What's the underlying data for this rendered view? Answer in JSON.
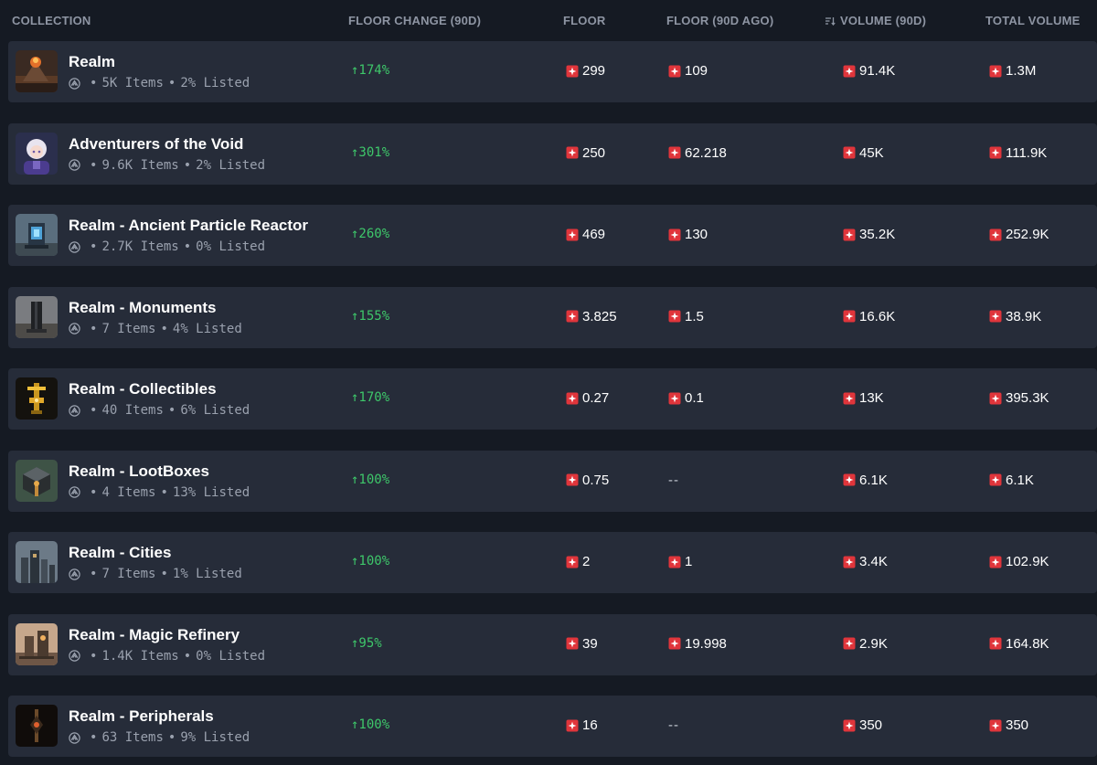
{
  "header": {
    "collection": "COLLECTION",
    "floor_change": "FLOOR CHANGE (90D)",
    "floor": "FLOOR",
    "floor_90d_ago": "FLOOR (90D AGO)",
    "volume": "VOLUME (90D)",
    "total_volume": "TOTAL VOLUME"
  },
  "colors": {
    "background": "#151a23",
    "row": "#262c39",
    "positive": "#3ec76a",
    "token": "#e0353b"
  },
  "rows": [
    {
      "name": "Realm",
      "items": "5K Items",
      "listed": "2% Listed",
      "change": "↑174%",
      "floor": "299",
      "floor_90d": "109",
      "volume": "91.4K",
      "total": "1.3M",
      "thumb": "volcano"
    },
    {
      "name": "Adventurers of the Void",
      "items": "9.6K Items",
      "listed": "2% Listed",
      "change": "↑301%",
      "floor": "250",
      "floor_90d": "62.218",
      "volume": "45K",
      "total": "111.9K",
      "thumb": "anime-character"
    },
    {
      "name": "Realm - Ancient Particle Reactor",
      "items": "2.7K Items",
      "listed": "0% Listed",
      "change": "↑260%",
      "floor": "469",
      "floor_90d": "130",
      "volume": "35.2K",
      "total": "252.9K",
      "thumb": "reactor"
    },
    {
      "name": "Realm - Monuments",
      "items": "7 Items",
      "listed": "4% Listed",
      "change": "↑155%",
      "floor": "3.825",
      "floor_90d": "1.5",
      "volume": "16.6K",
      "total": "38.9K",
      "thumb": "monument"
    },
    {
      "name": "Realm - Collectibles",
      "items": "40 Items",
      "listed": "6% Listed",
      "change": "↑170%",
      "floor": "0.27",
      "floor_90d": "0.1",
      "volume": "13K",
      "total": "395.3K",
      "thumb": "golden-totem"
    },
    {
      "name": "Realm - LootBoxes",
      "items": "4 Items",
      "listed": "13% Listed",
      "change": "↑100%",
      "floor": "0.75",
      "floor_90d": "--",
      "volume": "6.1K",
      "total": "6.1K",
      "thumb": "loot-box"
    },
    {
      "name": "Realm - Cities",
      "items": "7 Items",
      "listed": "1% Listed",
      "change": "↑100%",
      "floor": "2",
      "floor_90d": "1",
      "volume": "3.4K",
      "total": "102.9K",
      "thumb": "city"
    },
    {
      "name": "Realm - Magic Refinery",
      "items": "1.4K Items",
      "listed": "0% Listed",
      "change": "↑95%",
      "floor": "39",
      "floor_90d": "19.998",
      "volume": "2.9K",
      "total": "164.8K",
      "thumb": "refinery"
    },
    {
      "name": "Realm - Peripherals",
      "items": "63 Items",
      "listed": "9% Listed",
      "change": "↑100%",
      "floor": "16",
      "floor_90d": "--",
      "volume": "350",
      "total": "350",
      "thumb": "peripheral"
    }
  ]
}
